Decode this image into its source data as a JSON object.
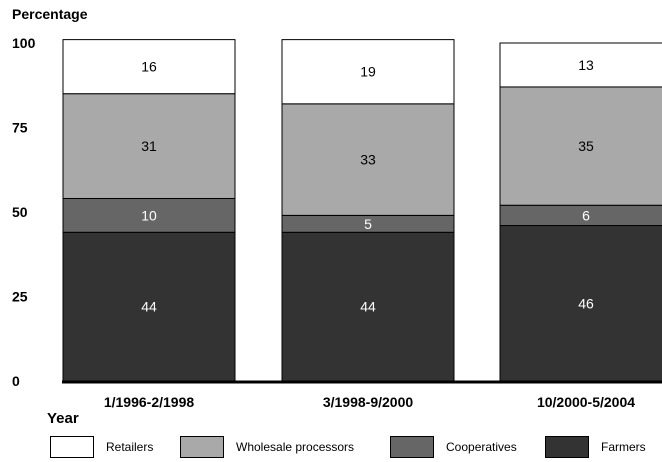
{
  "chart_data": {
    "type": "bar",
    "stacked": true,
    "title": "",
    "ylabel": "Percentage",
    "xlabel": "Year",
    "ylim": [
      0,
      100
    ],
    "yticks": [
      0,
      25,
      50,
      75,
      100
    ],
    "categories": [
      "1/1996-2/1998",
      "3/1998-9/2000",
      "10/2000-5/2004"
    ],
    "series": [
      {
        "name": "Farmers",
        "values": [
          44,
          44,
          46
        ],
        "color": "#333333",
        "label_color": "#ffffff"
      },
      {
        "name": "Cooperatives",
        "values": [
          10,
          5,
          6
        ],
        "color": "#666666",
        "label_color": "#ffffff"
      },
      {
        "name": "Wholesale processors",
        "values": [
          31,
          33,
          35
        ],
        "color": "#a9a9a9",
        "label_color": "#000000"
      },
      {
        "name": "Retailers",
        "values": [
          16,
          19,
          13
        ],
        "color": "#ffffff",
        "label_color": "#000000"
      }
    ],
    "legend": {
      "placement": "bottom",
      "order": [
        "Retailers",
        "Wholesale processors",
        "Cooperatives",
        "Farmers"
      ]
    },
    "grid": false
  }
}
